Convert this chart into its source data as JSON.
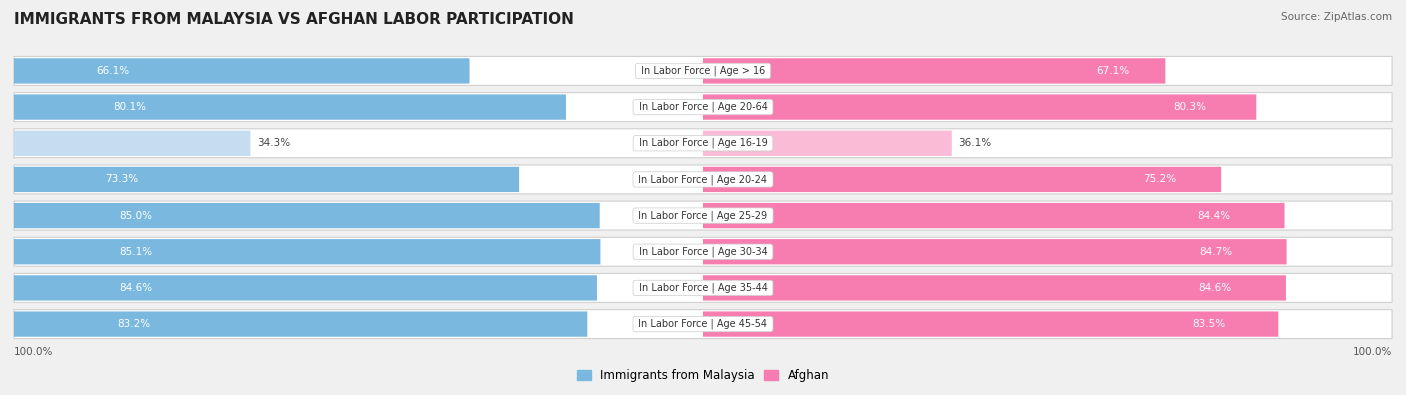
{
  "title": "IMMIGRANTS FROM MALAYSIA VS AFGHAN LABOR PARTICIPATION",
  "source": "Source: ZipAtlas.com",
  "categories": [
    "In Labor Force | Age > 16",
    "In Labor Force | Age 20-64",
    "In Labor Force | Age 16-19",
    "In Labor Force | Age 20-24",
    "In Labor Force | Age 25-29",
    "In Labor Force | Age 30-34",
    "In Labor Force | Age 35-44",
    "In Labor Force | Age 45-54"
  ],
  "malaysia_values": [
    66.1,
    80.1,
    34.3,
    73.3,
    85.0,
    85.1,
    84.6,
    83.2
  ],
  "afghan_values": [
    67.1,
    80.3,
    36.1,
    75.2,
    84.4,
    84.7,
    84.6,
    83.5
  ],
  "malaysia_color": "#7ab8e0",
  "malaysia_color_light": "#c5ddf0",
  "afghan_color": "#f77db0",
  "afghan_color_light": "#f9bbd5",
  "bar_height": 0.68,
  "background_color": "#f0f0f0",
  "row_bg_color": "#ffffff",
  "max_value": 100.0,
  "legend_labels": [
    "Immigrants from Malaysia",
    "Afghan"
  ],
  "light_threshold": 50
}
